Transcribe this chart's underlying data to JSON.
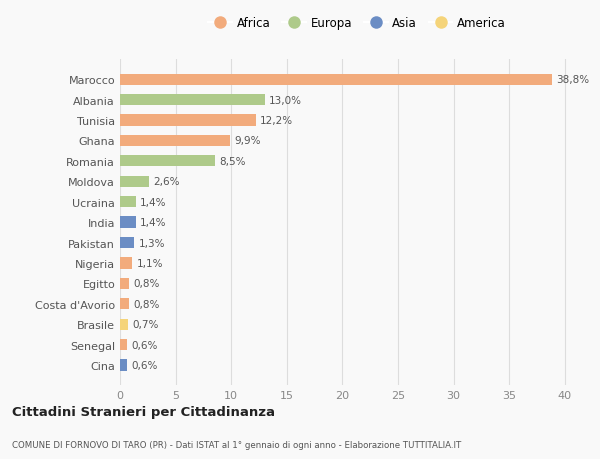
{
  "countries": [
    "Marocco",
    "Albania",
    "Tunisia",
    "Ghana",
    "Romania",
    "Moldova",
    "Ucraina",
    "India",
    "Pakistan",
    "Nigeria",
    "Egitto",
    "Costa d'Avorio",
    "Brasile",
    "Senegal",
    "Cina"
  ],
  "values": [
    38.8,
    13.0,
    12.2,
    9.9,
    8.5,
    2.6,
    1.4,
    1.4,
    1.3,
    1.1,
    0.8,
    0.8,
    0.7,
    0.6,
    0.6
  ],
  "labels": [
    "38,8%",
    "13,0%",
    "12,2%",
    "9,9%",
    "8,5%",
    "2,6%",
    "1,4%",
    "1,4%",
    "1,3%",
    "1,1%",
    "0,8%",
    "0,8%",
    "0,7%",
    "0,6%",
    "0,6%"
  ],
  "continents": [
    "Africa",
    "Europa",
    "Africa",
    "Africa",
    "Europa",
    "Europa",
    "Europa",
    "Asia",
    "Asia",
    "Africa",
    "Africa",
    "Africa",
    "America",
    "Africa",
    "Asia"
  ],
  "continent_colors": {
    "Africa": "#F2AB7C",
    "Europa": "#AECA8A",
    "Asia": "#6B8DC4",
    "America": "#F5D47A"
  },
  "legend_order": [
    "Africa",
    "Europa",
    "Asia",
    "America"
  ],
  "xlim": [
    0,
    41
  ],
  "xticks": [
    0,
    5,
    10,
    15,
    20,
    25,
    30,
    35,
    40
  ],
  "title": "Cittadini Stranieri per Cittadinanza",
  "subtitle": "COMUNE DI FORNOVO DI TARO (PR) - Dati ISTAT al 1° gennaio di ogni anno - Elaborazione TUTTITALIA.IT",
  "background_color": "#f9f9f9",
  "bar_height": 0.55,
  "grid_color": "#dddddd"
}
